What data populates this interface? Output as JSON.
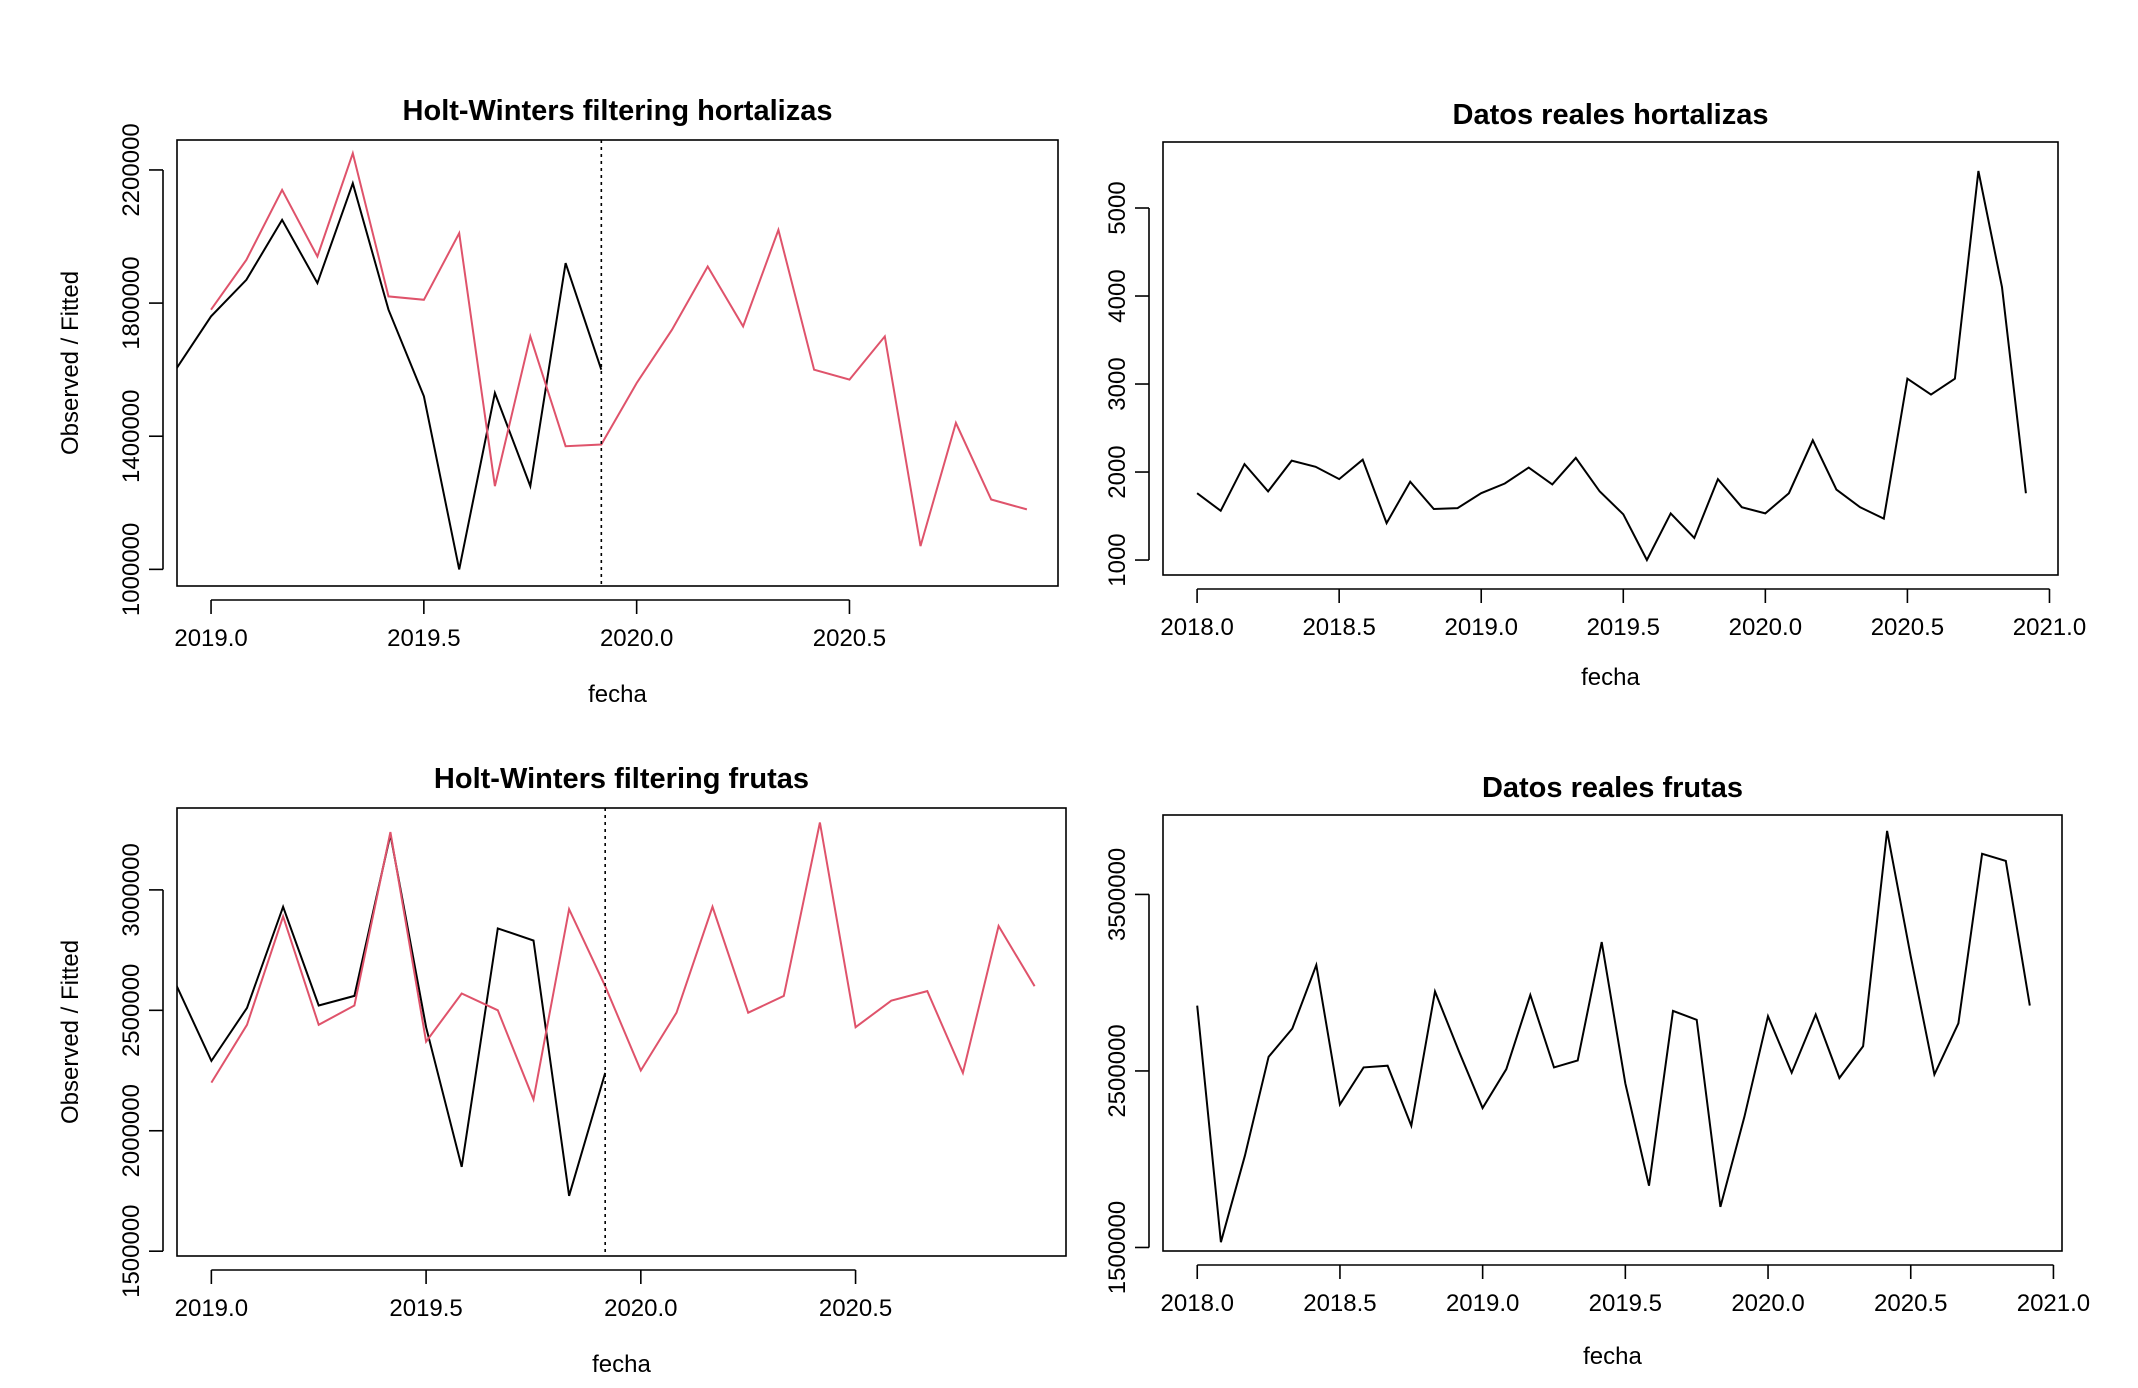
{
  "colors": {
    "observed": "#000000",
    "fitted": "#DF536B",
    "axis": "#000000",
    "background": "#ffffff"
  },
  "chart_data": [
    {
      "panel": "hw-hortalizas",
      "type": "line",
      "title": "Holt-Winters filtering hortalizas",
      "xlabel": "fecha",
      "ylabel": "Observed / Fitted",
      "xlim": [
        2018.92,
        2020.99
      ],
      "ylim": [
        950000,
        2290000
      ],
      "xticks": [
        2019.0,
        2019.5,
        2020.0,
        2020.5
      ],
      "xtick_labels": [
        "2019.0",
        "2019.5",
        "2020.0",
        "2020.5"
      ],
      "yticks": [
        1000000,
        1400000,
        1800000,
        2200000
      ],
      "ytick_labels": [
        "1000000",
        "1400000",
        "1800000",
        "2200000"
      ],
      "vline": 2019.917,
      "series": [
        {
          "role": "observed",
          "x": [
            2018.917,
            2019.0,
            2019.083,
            2019.167,
            2019.25,
            2019.333,
            2019.417,
            2019.5,
            2019.583,
            2019.667,
            2019.75,
            2019.833,
            2019.917
          ],
          "values": [
            1600000,
            1760000,
            1870000,
            2050000,
            1860000,
            2160000,
            1780000,
            1520000,
            1000000,
            1530000,
            1250000,
            1920000,
            1600000
          ]
        },
        {
          "role": "fitted",
          "x": [
            2019.0,
            2019.083,
            2019.167,
            2019.25,
            2019.333,
            2019.417,
            2019.5,
            2019.583,
            2019.667,
            2019.75,
            2019.833,
            2019.917,
            2020.0,
            2020.083,
            2020.167,
            2020.25,
            2020.333,
            2020.417,
            2020.5,
            2020.583,
            2020.667,
            2020.75,
            2020.833,
            2020.917
          ],
          "values": [
            1780000,
            1930000,
            2140000,
            1940000,
            2250000,
            1820000,
            1810000,
            2010000,
            1250000,
            1700000,
            1370000,
            1375000,
            1560000,
            1720000,
            1910000,
            1730000,
            2020000,
            1600000,
            1570000,
            1700000,
            1070000,
            1440000,
            1210000,
            1180000
          ]
        }
      ]
    },
    {
      "panel": "real-hortalizas",
      "type": "line",
      "title": "Datos reales hortalizas",
      "xlabel": "fecha",
      "xlim": [
        2017.88,
        2021.03
      ],
      "ylim": [
        830000,
        5750000
      ],
      "xticks": [
        2018.0,
        2018.5,
        2019.0,
        2019.5,
        2020.0,
        2020.5,
        2021.0
      ],
      "xtick_labels": [
        "2018.0",
        "2018.5",
        "2019.0",
        "2019.5",
        "2020.0",
        "2020.5",
        "2021.0"
      ],
      "yticks": [
        1000000,
        2000000,
        3000000,
        4000000,
        5000000
      ],
      "ytick_labels": [
        "1000",
        "2000",
        "3000",
        "4000",
        "5000"
      ],
      "series": [
        {
          "role": "observed",
          "x": [
            2018.0,
            2018.083,
            2018.167,
            2018.25,
            2018.333,
            2018.417,
            2018.5,
            2018.583,
            2018.667,
            2018.75,
            2018.833,
            2018.917,
            2019.0,
            2019.083,
            2019.167,
            2019.25,
            2019.333,
            2019.417,
            2019.5,
            2019.583,
            2019.667,
            2019.75,
            2019.833,
            2019.917,
            2020.0,
            2020.083,
            2020.167,
            2020.25,
            2020.333,
            2020.417,
            2020.5,
            2020.583,
            2020.667,
            2020.75,
            2020.833,
            2020.917
          ],
          "values": [
            1760000,
            1560000,
            2090000,
            1780000,
            2130000,
            2060000,
            1920000,
            2140000,
            1420000,
            1890000,
            1580000,
            1590000,
            1760000,
            1870000,
            2050000,
            1860000,
            2160000,
            1780000,
            1520000,
            1000000,
            1530000,
            1250000,
            1920000,
            1600000,
            1530000,
            1760000,
            2360000,
            1800000,
            1600000,
            1470000,
            3060000,
            2880000,
            3060000,
            5420000,
            4100000,
            1760000
          ]
        }
      ]
    },
    {
      "panel": "hw-frutas",
      "type": "line",
      "title": "Holt-Winters filtering frutas",
      "xlabel": "fecha",
      "ylabel": "Observed / Fitted",
      "xlim": [
        2018.92,
        2020.99
      ],
      "ylim": [
        1480000,
        3340000
      ],
      "xticks": [
        2019.0,
        2019.5,
        2020.0,
        2020.5
      ],
      "xtick_labels": [
        "2019.0",
        "2019.5",
        "2020.0",
        "2020.5"
      ],
      "yticks": [
        1500000,
        2000000,
        2500000,
        3000000
      ],
      "ytick_labels": [
        "1500000",
        "2000000",
        "2500000",
        "3000000"
      ],
      "vline": 2019.917,
      "series": [
        {
          "role": "observed",
          "x": [
            2018.917,
            2019.0,
            2019.083,
            2019.167,
            2019.25,
            2019.333,
            2019.417,
            2019.5,
            2019.583,
            2019.667,
            2019.75,
            2019.833,
            2019.917
          ],
          "values": [
            2610000,
            2290000,
            2510000,
            2930000,
            2520000,
            2560000,
            3230000,
            2430000,
            1850000,
            2840000,
            2790000,
            1730000,
            2240000
          ]
        },
        {
          "role": "fitted",
          "x": [
            2019.0,
            2019.083,
            2019.167,
            2019.25,
            2019.333,
            2019.417,
            2019.5,
            2019.583,
            2019.667,
            2019.75,
            2019.833,
            2019.917,
            2020.0,
            2020.083,
            2020.167,
            2020.25,
            2020.333,
            2020.417,
            2020.5,
            2020.583,
            2020.667,
            2020.75,
            2020.833,
            2020.917
          ],
          "values": [
            2200000,
            2440000,
            2890000,
            2440000,
            2520000,
            3240000,
            2370000,
            2570000,
            2500000,
            2130000,
            2920000,
            2600000,
            2250000,
            2490000,
            2930000,
            2490000,
            2560000,
            3280000,
            2430000,
            2540000,
            2580000,
            2240000,
            2850000,
            2600000
          ]
        }
      ]
    },
    {
      "panel": "real-frutas",
      "type": "line",
      "title": "Datos reales frutas",
      "xlabel": "fecha",
      "xlim": [
        2017.88,
        2021.03
      ],
      "ylim": [
        1480000,
        3950000
      ],
      "xticks": [
        2018.0,
        2018.5,
        2019.0,
        2019.5,
        2020.0,
        2020.5,
        2021.0
      ],
      "xtick_labels": [
        "2018.0",
        "2018.5",
        "2019.0",
        "2019.5",
        "2020.0",
        "2020.5",
        "2021.0"
      ],
      "yticks": [
        1500000,
        2500000,
        3500000
      ],
      "ytick_labels": [
        "1500000",
        "2500000",
        "3500000"
      ],
      "series": [
        {
          "role": "observed",
          "x": [
            2018.0,
            2018.083,
            2018.167,
            2018.25,
            2018.333,
            2018.417,
            2018.5,
            2018.583,
            2018.667,
            2018.75,
            2018.833,
            2018.917,
            2019.0,
            2019.083,
            2019.167,
            2019.25,
            2019.333,
            2019.417,
            2019.5,
            2019.583,
            2019.667,
            2019.75,
            2019.833,
            2019.917,
            2020.0,
            2020.083,
            2020.167,
            2020.25,
            2020.333,
            2020.417,
            2020.5,
            2020.583,
            2020.667,
            2020.75,
            2020.833,
            2020.917
          ],
          "values": [
            2870000,
            1530000,
            2020000,
            2580000,
            2740000,
            3100000,
            2310000,
            2520000,
            2530000,
            2190000,
            2950000,
            2610000,
            2290000,
            2510000,
            2930000,
            2520000,
            2560000,
            3230000,
            2430000,
            1850000,
            2840000,
            2790000,
            1730000,
            2240000,
            2810000,
            2490000,
            2820000,
            2460000,
            2640000,
            3860000,
            3150000,
            2480000,
            2770000,
            3730000,
            3690000,
            2870000
          ]
        }
      ]
    }
  ]
}
